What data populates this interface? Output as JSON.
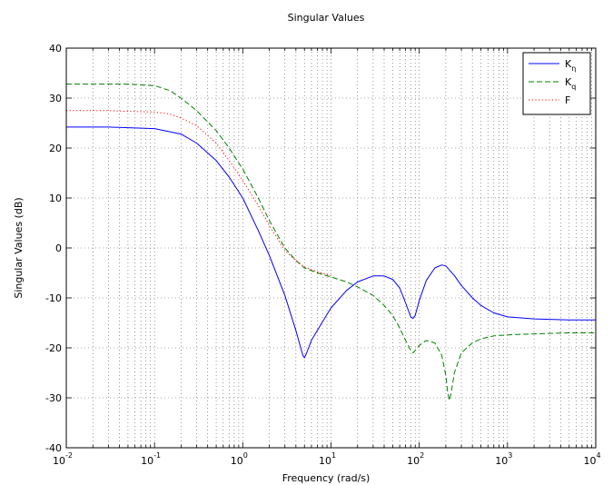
{
  "chart_data": {
    "type": "line",
    "title": "Singular Values",
    "xlabel": "Frequency (rad/s)",
    "ylabel": "Singular Values (dB)",
    "xscale": "log",
    "xlim": [
      0.01,
      10000
    ],
    "ylim": [
      -40,
      40
    ],
    "x_ticks": [
      {
        "base": "10",
        "exp": "-2"
      },
      {
        "base": "10",
        "exp": "-1"
      },
      {
        "base": "10",
        "exp": "0"
      },
      {
        "base": "10",
        "exp": "1"
      },
      {
        "base": "10",
        "exp": "2"
      },
      {
        "base": "10",
        "exp": "3"
      },
      {
        "base": "10",
        "exp": "4"
      }
    ],
    "y_ticks": [
      "-40",
      "-30",
      "-20",
      "-10",
      "0",
      "10",
      "20",
      "30",
      "40"
    ],
    "grid": true,
    "legend": {
      "position": "top-right",
      "entries": [
        {
          "base": "K",
          "sub": "η"
        },
        {
          "base": "K",
          "sub": "q"
        },
        {
          "base": "F",
          "sub": ""
        }
      ]
    },
    "series": [
      {
        "name": "Kη",
        "color": "#0000ff",
        "dash": "solid",
        "x": [
          0.01,
          0.03,
          0.1,
          0.2,
          0.3,
          0.5,
          0.7,
          1.0,
          1.5,
          2.0,
          3.0,
          4.0,
          4.8,
          5.0,
          5.3,
          6.0,
          8.0,
          10,
          15,
          20,
          30,
          40,
          50,
          60,
          70,
          80,
          85,
          90,
          100,
          120,
          150,
          180,
          200,
          250,
          300,
          400,
          500,
          700,
          1000,
          2000,
          5000,
          10000
        ],
        "y": [
          24.2,
          24.2,
          23.9,
          22.8,
          21.0,
          17.5,
          14.2,
          10.0,
          3.5,
          -1.5,
          -9.5,
          -16.5,
          -21.5,
          -22.0,
          -21.0,
          -18.5,
          -14.8,
          -12.0,
          -8.5,
          -6.8,
          -5.6,
          -5.6,
          -6.3,
          -8.0,
          -11.0,
          -13.8,
          -14.1,
          -13.5,
          -10.5,
          -6.5,
          -4.0,
          -3.4,
          -3.6,
          -5.5,
          -7.5,
          -10.0,
          -11.5,
          -13.0,
          -13.8,
          -14.2,
          -14.4,
          -14.4
        ]
      },
      {
        "name": "Kq",
        "color": "#008000",
        "dash": "dashed",
        "x": [
          0.01,
          0.03,
          0.05,
          0.1,
          0.15,
          0.2,
          0.3,
          0.5,
          0.7,
          1.0,
          1.5,
          2.0,
          3.0,
          4.0,
          5.0,
          7.0,
          10,
          15,
          20,
          30,
          40,
          50,
          60,
          70,
          80,
          85,
          90,
          100,
          120,
          150,
          180,
          200,
          210,
          220,
          230,
          250,
          300,
          400,
          500,
          700,
          1000,
          2000,
          5000,
          10000
        ],
        "y": [
          32.8,
          32.8,
          32.8,
          32.5,
          31.5,
          30.0,
          27.5,
          23.5,
          20.0,
          15.8,
          10.0,
          5.5,
          0.0,
          -2.5,
          -4.0,
          -5.0,
          -5.8,
          -6.8,
          -7.8,
          -9.5,
          -11.5,
          -13.5,
          -16.0,
          -18.5,
          -20.5,
          -21.0,
          -20.5,
          -19.5,
          -18.5,
          -19.0,
          -21.5,
          -25.5,
          -29.0,
          -30.5,
          -29.0,
          -25.0,
          -21.0,
          -19.0,
          -18.2,
          -17.6,
          -17.4,
          -17.2,
          -17.0,
          -17.0
        ]
      },
      {
        "name": "F",
        "color": "#ff0000",
        "dash": "dotted",
        "x": [
          0.01,
          0.03,
          0.1,
          0.15,
          0.2,
          0.3,
          0.5,
          0.7,
          1.0,
          1.5,
          2.0,
          3.0,
          4.0,
          5.0,
          7.0,
          10
        ],
        "y": [
          27.5,
          27.5,
          27.2,
          26.8,
          26.0,
          24.5,
          21.0,
          17.5,
          13.5,
          8.5,
          4.5,
          -0.5,
          -2.5,
          -3.8,
          -4.8,
          -5.5
        ]
      }
    ]
  }
}
